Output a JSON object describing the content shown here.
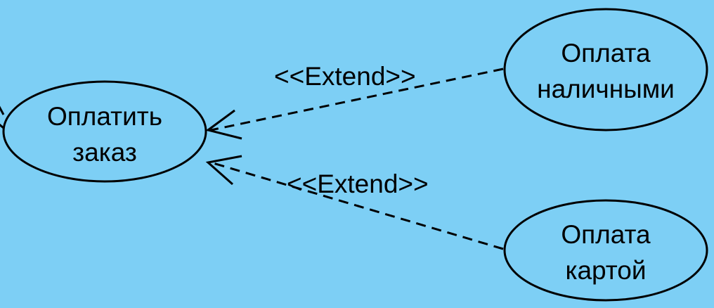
{
  "background_color": "#7dcff5",
  "line_color": "#000000",
  "use_cases": {
    "pay_order": {
      "line1": "Оплатить",
      "line2": "заказ"
    },
    "pay_cash": {
      "line1": "Оплата",
      "line2": "наличными"
    },
    "pay_card": {
      "line1": "Оплата",
      "line2": "картой"
    }
  },
  "relations": {
    "cash_extend": {
      "stereotype": "<<Extend>>"
    },
    "card_extend": {
      "stereotype": "<<Extend>>"
    }
  }
}
